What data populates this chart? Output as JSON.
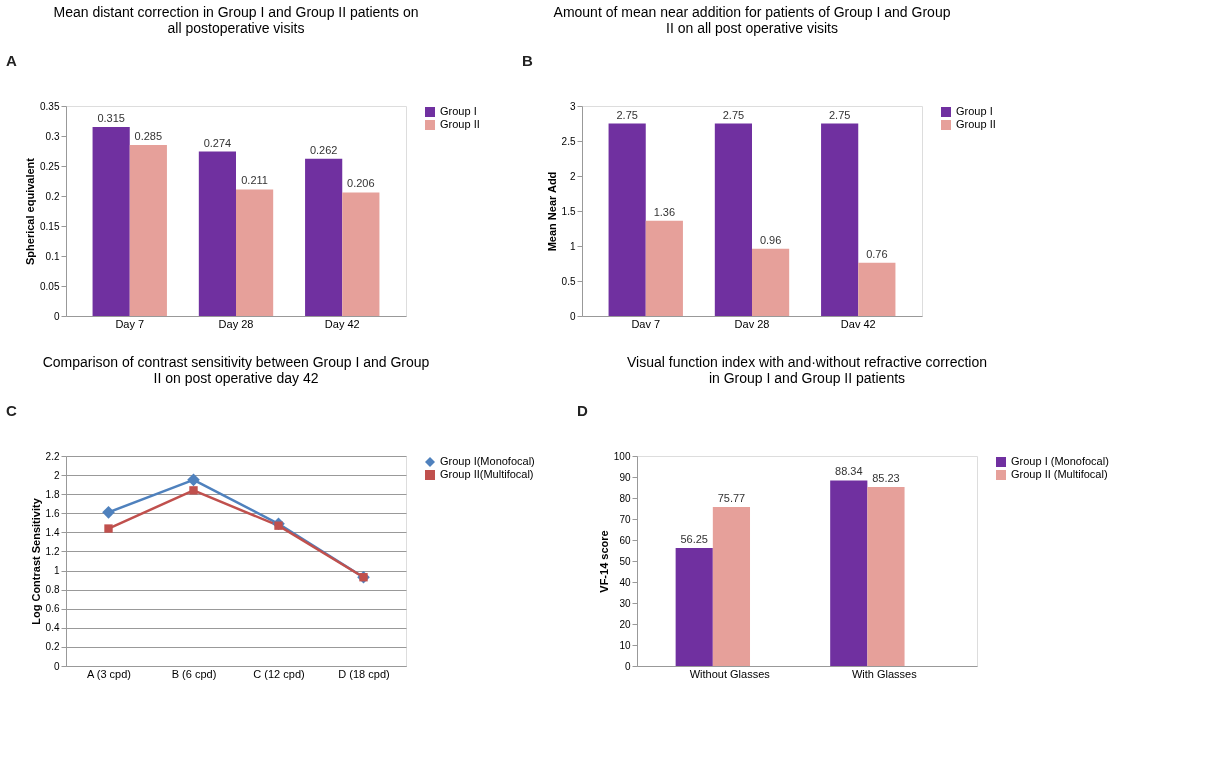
{
  "chart_data": [
    {
      "type": "bar",
      "title": "Mean distant correction in Group I and Group II patients on all postoperative visits",
      "ylabel": "Spherical equivalent",
      "annotations": [
        "A"
      ],
      "categories": [
        "Day 7",
        "Day 28",
        "Day 42"
      ],
      "series": [
        {
          "name": "Group I",
          "color": "#7030a0",
          "values": [
            0.315,
            0.274,
            0.262
          ]
        },
        {
          "name": "Group II",
          "color": "#e6a09a",
          "values": [
            0.285,
            0.211,
            0.206
          ]
        }
      ],
      "ylim": [
        0,
        0.35
      ],
      "yticks": [
        0,
        0.05,
        0.1,
        0.15,
        0.2,
        0.25,
        0.3,
        0.35
      ],
      "grid": false,
      "legend": "right",
      "data_labels": true
    },
    {
      "type": "bar",
      "title": "Amount of mean near addition for patients of Group I and Group II on all post operative visits",
      "ylabel": "Mean Near Add",
      "annotations": [
        "B"
      ],
      "categories": [
        "Dav 7",
        "Dav 28",
        "Dav 42"
      ],
      "series": [
        {
          "name": "Group I",
          "color": "#7030a0",
          "values": [
            2.75,
            2.75,
            2.75
          ]
        },
        {
          "name": "Group II",
          "color": "#e6a09a",
          "values": [
            1.36,
            0.96,
            0.76
          ]
        }
      ],
      "ylim": [
        0,
        3
      ],
      "yticks": [
        0,
        0.5,
        1,
        1.5,
        2,
        2.5,
        3
      ],
      "grid": false,
      "legend": "right",
      "data_labels": true
    },
    {
      "type": "line",
      "title": "Comparison of contrast sensitivity between Group I and Group II on post operative day 42",
      "ylabel": "Log Contrast Sensitivity",
      "annotations": [
        "C"
      ],
      "categories": [
        "A (3 cpd)",
        "B (6 cpd)",
        "C (12 cpd)",
        "D (18 cpd)"
      ],
      "series": [
        {
          "name": "Group I(Monofocal)",
          "color": "#4f81bd",
          "marker": "diamond",
          "values": [
            1.61,
            1.95,
            1.49,
            0.93
          ]
        },
        {
          "name": "Group II(Multifocal)",
          "color": "#c0504d",
          "marker": "square",
          "values": [
            1.44,
            1.84,
            1.47,
            0.93
          ]
        }
      ],
      "ylim": [
        0,
        2.2
      ],
      "yticks": [
        0,
        0.2,
        0.4,
        0.6,
        0.8,
        1,
        1.2,
        1.4,
        1.6,
        1.8,
        2,
        2.2
      ],
      "grid": "y",
      "legend": "right",
      "line_style": "solid"
    },
    {
      "type": "bar",
      "title": "Visual function index with and·without refractive correction in Group I and Group II patients",
      "ylabel": "VF-14 score",
      "annotations": [
        "D"
      ],
      "categories": [
        "Without Glasses",
        "With Glasses"
      ],
      "series": [
        {
          "name": "Group I (Monofocal)",
          "color": "#7030a0",
          "values": [
            56.25,
            88.34
          ]
        },
        {
          "name": "Group II (Multifocal)",
          "color": "#e6a09a",
          "values": [
            75.77,
            85.23
          ]
        }
      ],
      "ylim": [
        0,
        100
      ],
      "yticks": [
        0,
        10,
        20,
        30,
        40,
        50,
        60,
        70,
        80,
        90,
        100
      ],
      "grid": false,
      "legend": "right",
      "data_labels": true
    }
  ]
}
